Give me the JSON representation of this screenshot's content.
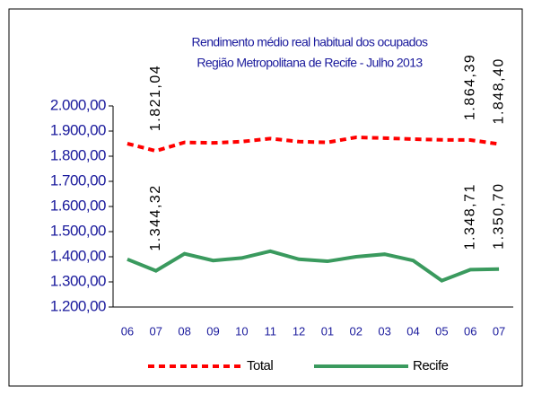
{
  "chart_data": {
    "type": "line",
    "title": "Rendimento médio real habitual dos ocupados",
    "subtitle": "Região Metropolitana de Recife - Julho 2013",
    "categories": [
      "06",
      "07",
      "08",
      "09",
      "10",
      "11",
      "12",
      "01",
      "02",
      "03",
      "04",
      "05",
      "06",
      "07"
    ],
    "series": [
      {
        "name": "Total",
        "color": "#ff0000",
        "line_style": "dashed",
        "values": [
          1850,
          1821.04,
          1855,
          1853,
          1858,
          1870,
          1858,
          1855,
          1875,
          1872,
          1868,
          1865,
          1864.39,
          1848.4
        ],
        "value_labels": [
          null,
          "1.821,04",
          null,
          null,
          null,
          null,
          null,
          null,
          null,
          null,
          null,
          null,
          "1.864,39",
          "1.848,40"
        ]
      },
      {
        "name": "Recife",
        "color": "#3a9a5e",
        "line_style": "solid",
        "values": [
          1390,
          1344.32,
          1412,
          1385,
          1395,
          1422,
          1390,
          1382,
          1400,
          1410,
          1385,
          1305,
          1348.71,
          1350.7
        ],
        "value_labels": [
          null,
          "1.344,32",
          null,
          null,
          null,
          null,
          null,
          null,
          null,
          null,
          null,
          null,
          "1.348,71",
          "1.350,70"
        ]
      }
    ],
    "ylim": [
      1200,
      2000
    ],
    "yticks": [
      {
        "value": 1200,
        "label": "1.200,00"
      },
      {
        "value": 1300,
        "label": "1.300,00"
      },
      {
        "value": 1400,
        "label": "1.400,00"
      },
      {
        "value": 1500,
        "label": "1.500,00"
      },
      {
        "value": 1600,
        "label": "1.600,00"
      },
      {
        "value": 1700,
        "label": "1.700,00"
      },
      {
        "value": 1800,
        "label": "1.800,00"
      },
      {
        "value": 1900,
        "label": "1.900,00"
      },
      {
        "value": 2000,
        "label": "2.000,00"
      }
    ],
    "legend": "bottom"
  }
}
